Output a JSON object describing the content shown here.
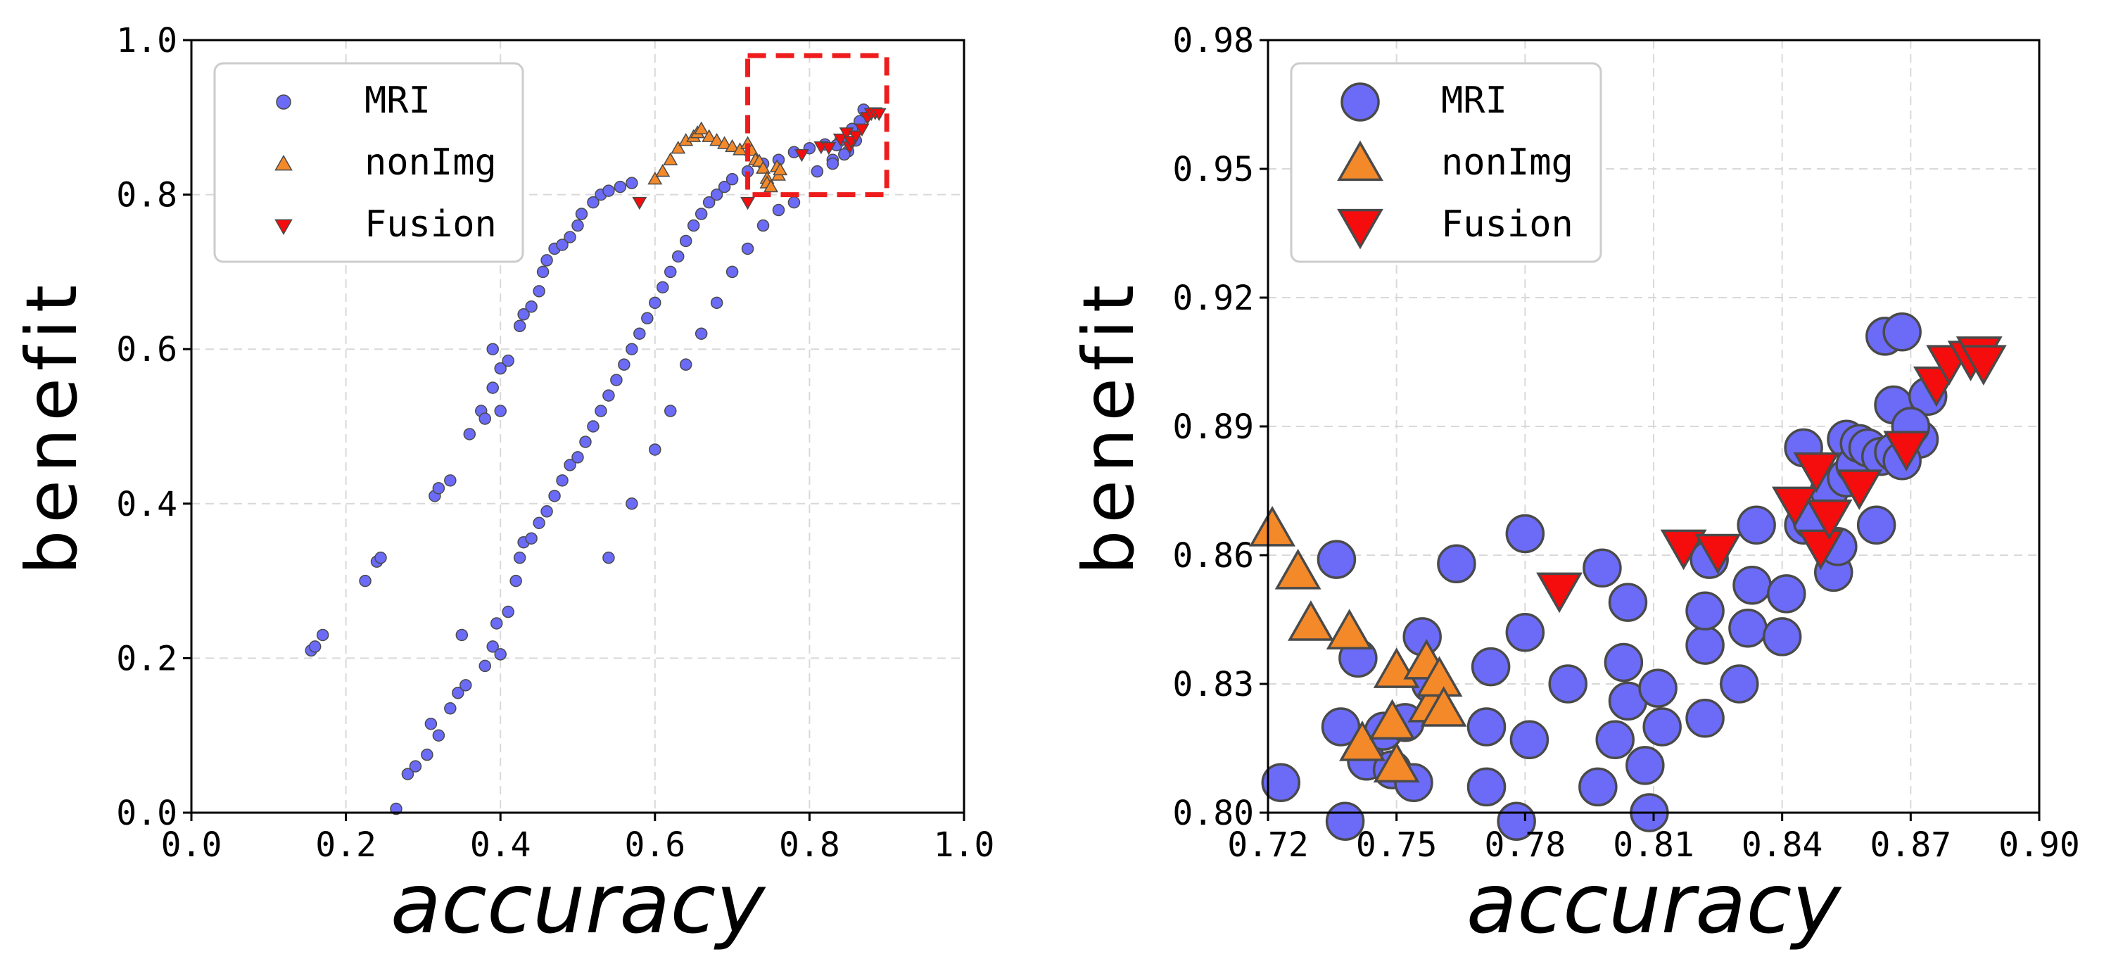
{
  "colors": {
    "mri": "#6B6BF7",
    "nonimg": "#F4892A",
    "fusion": "#F50C0C",
    "marker_edge": "#4a4a4a",
    "zoom_box": "#EE1C1C"
  },
  "chart_data": [
    {
      "type": "scatter",
      "xlabel": "accuracy",
      "ylabel": "benefit",
      "xlim": [
        0.0,
        1.0
      ],
      "ylim": [
        0.0,
        1.0
      ],
      "x_ticks": [
        "0.0",
        "0.2",
        "0.4",
        "0.6",
        "0.8",
        "1.0"
      ],
      "y_ticks": [
        "0.0",
        "0.2",
        "0.4",
        "0.6",
        "0.8",
        "1.0"
      ],
      "grid": true,
      "legend_position": "top-left",
      "zoom_box": {
        "x": [
          0.72,
          0.9
        ],
        "y": [
          0.8,
          0.98
        ]
      },
      "series": [
        {
          "name": "MRI",
          "marker": "circle",
          "points": [
            [
              0.155,
              0.21
            ],
            [
              0.16,
              0.215
            ],
            [
              0.17,
              0.23
            ],
            [
              0.225,
              0.3
            ],
            [
              0.24,
              0.325
            ],
            [
              0.245,
              0.33
            ],
            [
              0.265,
              0.005
            ],
            [
              0.28,
              0.05
            ],
            [
              0.29,
              0.06
            ],
            [
              0.305,
              0.075
            ],
            [
              0.31,
              0.115
            ],
            [
              0.32,
              0.1
            ],
            [
              0.315,
              0.41
            ],
            [
              0.32,
              0.42
            ],
            [
              0.335,
              0.43
            ],
            [
              0.335,
              0.135
            ],
            [
              0.345,
              0.155
            ],
            [
              0.355,
              0.165
            ],
            [
              0.35,
              0.23
            ],
            [
              0.36,
              0.49
            ],
            [
              0.375,
              0.52
            ],
            [
              0.38,
              0.51
            ],
            [
              0.39,
              0.55
            ],
            [
              0.4,
              0.52
            ],
            [
              0.39,
              0.6
            ],
            [
              0.4,
              0.575
            ],
            [
              0.41,
              0.585
            ],
            [
              0.425,
              0.63
            ],
            [
              0.43,
              0.645
            ],
            [
              0.44,
              0.655
            ],
            [
              0.45,
              0.675
            ],
            [
              0.455,
              0.7
            ],
            [
              0.46,
              0.715
            ],
            [
              0.47,
              0.73
            ],
            [
              0.48,
              0.735
            ],
            [
              0.49,
              0.745
            ],
            [
              0.5,
              0.76
            ],
            [
              0.505,
              0.775
            ],
            [
              0.52,
              0.79
            ],
            [
              0.53,
              0.8
            ],
            [
              0.54,
              0.805
            ],
            [
              0.555,
              0.81
            ],
            [
              0.57,
              0.815
            ],
            [
              0.38,
              0.19
            ],
            [
              0.39,
              0.215
            ],
            [
              0.395,
              0.245
            ],
            [
              0.4,
              0.205
            ],
            [
              0.41,
              0.26
            ],
            [
              0.42,
              0.3
            ],
            [
              0.425,
              0.33
            ],
            [
              0.43,
              0.35
            ],
            [
              0.44,
              0.355
            ],
            [
              0.45,
              0.375
            ],
            [
              0.46,
              0.39
            ],
            [
              0.47,
              0.41
            ],
            [
              0.48,
              0.43
            ],
            [
              0.49,
              0.45
            ],
            [
              0.5,
              0.46
            ],
            [
              0.51,
              0.48
            ],
            [
              0.52,
              0.5
            ],
            [
              0.53,
              0.52
            ],
            [
              0.54,
              0.54
            ],
            [
              0.55,
              0.56
            ],
            [
              0.56,
              0.58
            ],
            [
              0.57,
              0.6
            ],
            [
              0.58,
              0.62
            ],
            [
              0.59,
              0.64
            ],
            [
              0.6,
              0.66
            ],
            [
              0.61,
              0.68
            ],
            [
              0.62,
              0.7
            ],
            [
              0.63,
              0.72
            ],
            [
              0.64,
              0.74
            ],
            [
              0.65,
              0.76
            ],
            [
              0.66,
              0.775
            ],
            [
              0.67,
              0.79
            ],
            [
              0.68,
              0.8
            ],
            [
              0.69,
              0.81
            ],
            [
              0.7,
              0.82
            ],
            [
              0.72,
              0.83
            ],
            [
              0.74,
              0.84
            ],
            [
              0.76,
              0.845
            ],
            [
              0.78,
              0.855
            ],
            [
              0.8,
              0.86
            ],
            [
              0.82,
              0.865
            ],
            [
              0.84,
              0.87
            ],
            [
              0.855,
              0.885
            ],
            [
              0.865,
              0.895
            ],
            [
              0.875,
              0.905
            ],
            [
              0.87,
              0.91
            ],
            [
              0.86,
              0.87
            ],
            [
              0.54,
              0.33
            ],
            [
              0.57,
              0.4
            ],
            [
              0.6,
              0.47
            ],
            [
              0.62,
              0.52
            ],
            [
              0.64,
              0.58
            ],
            [
              0.66,
              0.62
            ],
            [
              0.68,
              0.66
            ],
            [
              0.7,
              0.7
            ],
            [
              0.72,
              0.73
            ],
            [
              0.74,
              0.76
            ],
            [
              0.76,
              0.78
            ],
            [
              0.78,
              0.79
            ],
            [
              0.81,
              0.83
            ],
            [
              0.83,
              0.845
            ],
            [
              0.85,
              0.856
            ],
            [
              0.845,
              0.852
            ],
            [
              0.83,
              0.84
            ],
            [
              0.835,
              0.864
            ]
          ]
        },
        {
          "name": "nonImg",
          "marker": "triangle-up",
          "points": [
            [
              0.6,
              0.82
            ],
            [
              0.61,
              0.83
            ],
            [
              0.62,
              0.845
            ],
            [
              0.63,
              0.86
            ],
            [
              0.64,
              0.87
            ],
            [
              0.65,
              0.875
            ],
            [
              0.655,
              0.88
            ],
            [
              0.66,
              0.885
            ],
            [
              0.67,
              0.875
            ],
            [
              0.68,
              0.87
            ],
            [
              0.69,
              0.866
            ],
            [
              0.7,
              0.862
            ],
            [
              0.71,
              0.858
            ],
            [
              0.72,
              0.866
            ],
            [
              0.725,
              0.857
            ],
            [
              0.73,
              0.845
            ],
            [
              0.735,
              0.843
            ],
            [
              0.74,
              0.834
            ],
            [
              0.745,
              0.821
            ],
            [
              0.745,
              0.815
            ],
            [
              0.75,
              0.81
            ],
            [
              0.758,
              0.836
            ],
            [
              0.76,
              0.825
            ],
            [
              0.762,
              0.832
            ]
          ]
        },
        {
          "name": "Fusion",
          "marker": "triangle-down",
          "points": [
            [
              0.58,
              0.79
            ],
            [
              0.72,
              0.79
            ],
            [
              0.79,
              0.852
            ],
            [
              0.815,
              0.862
            ],
            [
              0.825,
              0.861
            ],
            [
              0.84,
              0.872
            ],
            [
              0.848,
              0.88
            ],
            [
              0.852,
              0.862
            ],
            [
              0.854,
              0.869
            ],
            [
              0.86,
              0.876
            ],
            [
              0.868,
              0.885
            ],
            [
              0.875,
              0.9
            ],
            [
              0.88,
              0.905
            ],
            [
              0.885,
              0.906
            ],
            [
              0.89,
              0.905
            ]
          ]
        }
      ]
    },
    {
      "type": "scatter",
      "xlabel": "accuracy",
      "ylabel": "benefit",
      "xlim": [
        0.72,
        0.9
      ],
      "ylim": [
        0.8,
        0.98
      ],
      "x_ticks": [
        "0.72",
        "0.75",
        "0.78",
        "0.81",
        "0.84",
        "0.87",
        "0.90"
      ],
      "y_ticks": [
        "0.80",
        "0.83",
        "0.86",
        "0.89",
        "0.92",
        "0.95",
        "0.98"
      ],
      "grid": true,
      "legend_position": "top-left",
      "series": [
        {
          "name": "MRI",
          "marker": "circle",
          "points": [
            [
              0.723,
              0.807
            ],
            [
              0.736,
              0.859
            ],
            [
              0.737,
              0.82
            ],
            [
              0.738,
              0.798
            ],
            [
              0.741,
              0.836
            ],
            [
              0.743,
              0.812
            ],
            [
              0.747,
              0.819
            ],
            [
              0.749,
              0.81
            ],
            [
              0.752,
              0.821
            ],
            [
              0.754,
              0.807
            ],
            [
              0.756,
              0.841
            ],
            [
              0.758,
              0.83
            ],
            [
              0.764,
              0.858
            ],
            [
              0.771,
              0.806
            ],
            [
              0.771,
              0.82
            ],
            [
              0.772,
              0.834
            ],
            [
              0.778,
              0.798
            ],
            [
              0.78,
              0.865
            ],
            [
              0.78,
              0.842
            ],
            [
              0.781,
              0.817
            ],
            [
              0.79,
              0.83
            ],
            [
              0.797,
              0.806
            ],
            [
              0.798,
              0.857
            ],
            [
              0.801,
              0.817
            ],
            [
              0.803,
              0.835
            ],
            [
              0.804,
              0.826
            ],
            [
              0.804,
              0.849
            ],
            [
              0.808,
              0.811
            ],
            [
              0.809,
              0.8
            ],
            [
              0.811,
              0.829
            ],
            [
              0.812,
              0.82
            ],
            [
              0.822,
              0.839
            ],
            [
              0.822,
              0.847
            ],
            [
              0.822,
              0.822
            ],
            [
              0.823,
              0.859
            ],
            [
              0.83,
              0.83
            ],
            [
              0.832,
              0.843
            ],
            [
              0.833,
              0.853
            ],
            [
              0.834,
              0.867
            ],
            [
              0.84,
              0.841
            ],
            [
              0.841,
              0.851
            ],
            [
              0.845,
              0.867
            ],
            [
              0.845,
              0.885
            ],
            [
              0.847,
              0.868
            ],
            [
              0.851,
              0.875
            ],
            [
              0.852,
              0.856
            ],
            [
              0.853,
              0.862
            ],
            [
              0.855,
              0.887
            ],
            [
              0.855,
              0.878
            ],
            [
              0.857,
              0.881
            ],
            [
              0.858,
              0.886
            ],
            [
              0.86,
              0.885
            ],
            [
              0.862,
              0.867
            ],
            [
              0.863,
              0.883
            ],
            [
              0.864,
              0.911
            ],
            [
              0.866,
              0.895
            ],
            [
              0.868,
              0.912
            ],
            [
              0.872,
              0.887
            ],
            [
              0.874,
              0.897
            ],
            [
              0.866,
              0.884
            ],
            [
              0.868,
              0.882
            ],
            [
              0.87,
              0.89
            ]
          ]
        },
        {
          "name": "nonImg",
          "marker": "triangle-up",
          "points": [
            [
              0.721,
              0.866
            ],
            [
              0.727,
              0.856
            ],
            [
              0.73,
              0.844
            ],
            [
              0.739,
              0.842
            ],
            [
              0.742,
              0.816
            ],
            [
              0.75,
              0.833
            ],
            [
              0.749,
              0.821
            ],
            [
              0.75,
              0.811
            ],
            [
              0.757,
              0.835
            ],
            [
              0.758,
              0.825
            ],
            [
              0.76,
              0.831
            ],
            [
              0.761,
              0.824
            ]
          ]
        },
        {
          "name": "Fusion",
          "marker": "triangle-down",
          "points": [
            [
              0.788,
              0.852
            ],
            [
              0.817,
              0.862
            ],
            [
              0.825,
              0.861
            ],
            [
              0.843,
              0.872
            ],
            [
              0.848,
              0.88
            ],
            [
              0.849,
              0.862
            ],
            [
              0.851,
              0.869
            ],
            [
              0.858,
              0.876
            ],
            [
              0.869,
              0.885
            ],
            [
              0.876,
              0.9
            ],
            [
              0.879,
              0.905
            ],
            [
              0.884,
              0.906
            ],
            [
              0.886,
              0.907
            ],
            [
              0.887,
              0.905
            ]
          ]
        }
      ]
    }
  ]
}
